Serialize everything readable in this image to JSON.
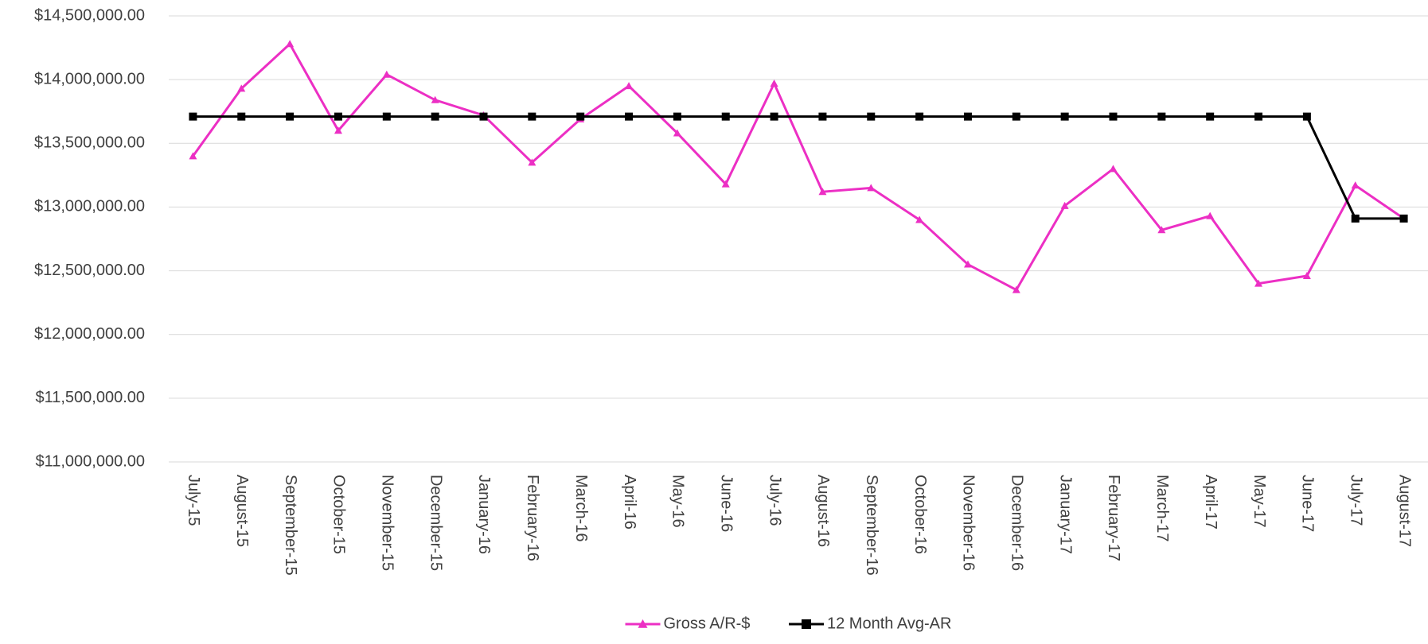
{
  "chart_data": {
    "type": "line",
    "categories": [
      "July-15",
      "August-15",
      "September-15",
      "October-15",
      "November-15",
      "December-15",
      "January-16",
      "February-16",
      "March-16",
      "April-16",
      "May-16",
      "June-16",
      "July-16",
      "August-16",
      "September-16",
      "October-16",
      "November-16",
      "December-16",
      "January-17",
      "February-17",
      "March-17",
      "April-17",
      "May-17",
      "June-17",
      "July-17",
      "August-17"
    ],
    "series": [
      {
        "name": "Gross A/R-$",
        "color": "#ec2fc4",
        "marker": "triangle",
        "values": [
          13400000,
          13930000,
          14280000,
          13600000,
          14040000,
          13840000,
          13720000,
          13350000,
          13690000,
          13950000,
          13580000,
          13180000,
          13970000,
          13120000,
          13150000,
          12900000,
          12550000,
          12350000,
          13010000,
          13300000,
          12820000,
          12930000,
          12400000,
          12460000,
          13170000,
          12910000
        ]
      },
      {
        "name": "12 Month Avg-AR",
        "color": "#000000",
        "marker": "square",
        "values": [
          13710000,
          13710000,
          13710000,
          13710000,
          13710000,
          13710000,
          13710000,
          13710000,
          13710000,
          13710000,
          13710000,
          13710000,
          13710000,
          13710000,
          13710000,
          13710000,
          13710000,
          13710000,
          13710000,
          13710000,
          13710000,
          13710000,
          13710000,
          13710000,
          12910000,
          12910000
        ]
      }
    ],
    "ylim": [
      11000000,
      14500000
    ],
    "yticks": [
      {
        "value": 11000000,
        "label": "$11,000,000.00"
      },
      {
        "value": 11500000,
        "label": "$11,500,000.00"
      },
      {
        "value": 12000000,
        "label": "$12,000,000.00"
      },
      {
        "value": 12500000,
        "label": "$12,500,000.00"
      },
      {
        "value": 13000000,
        "label": "$13,000,000.00"
      },
      {
        "value": 13500000,
        "label": "$13,500,000.00"
      },
      {
        "value": 14000000,
        "label": "$14,000,000.00"
      },
      {
        "value": 14500000,
        "label": "$14,500,000.00"
      }
    ],
    "grid": true,
    "legend": "bottom"
  }
}
